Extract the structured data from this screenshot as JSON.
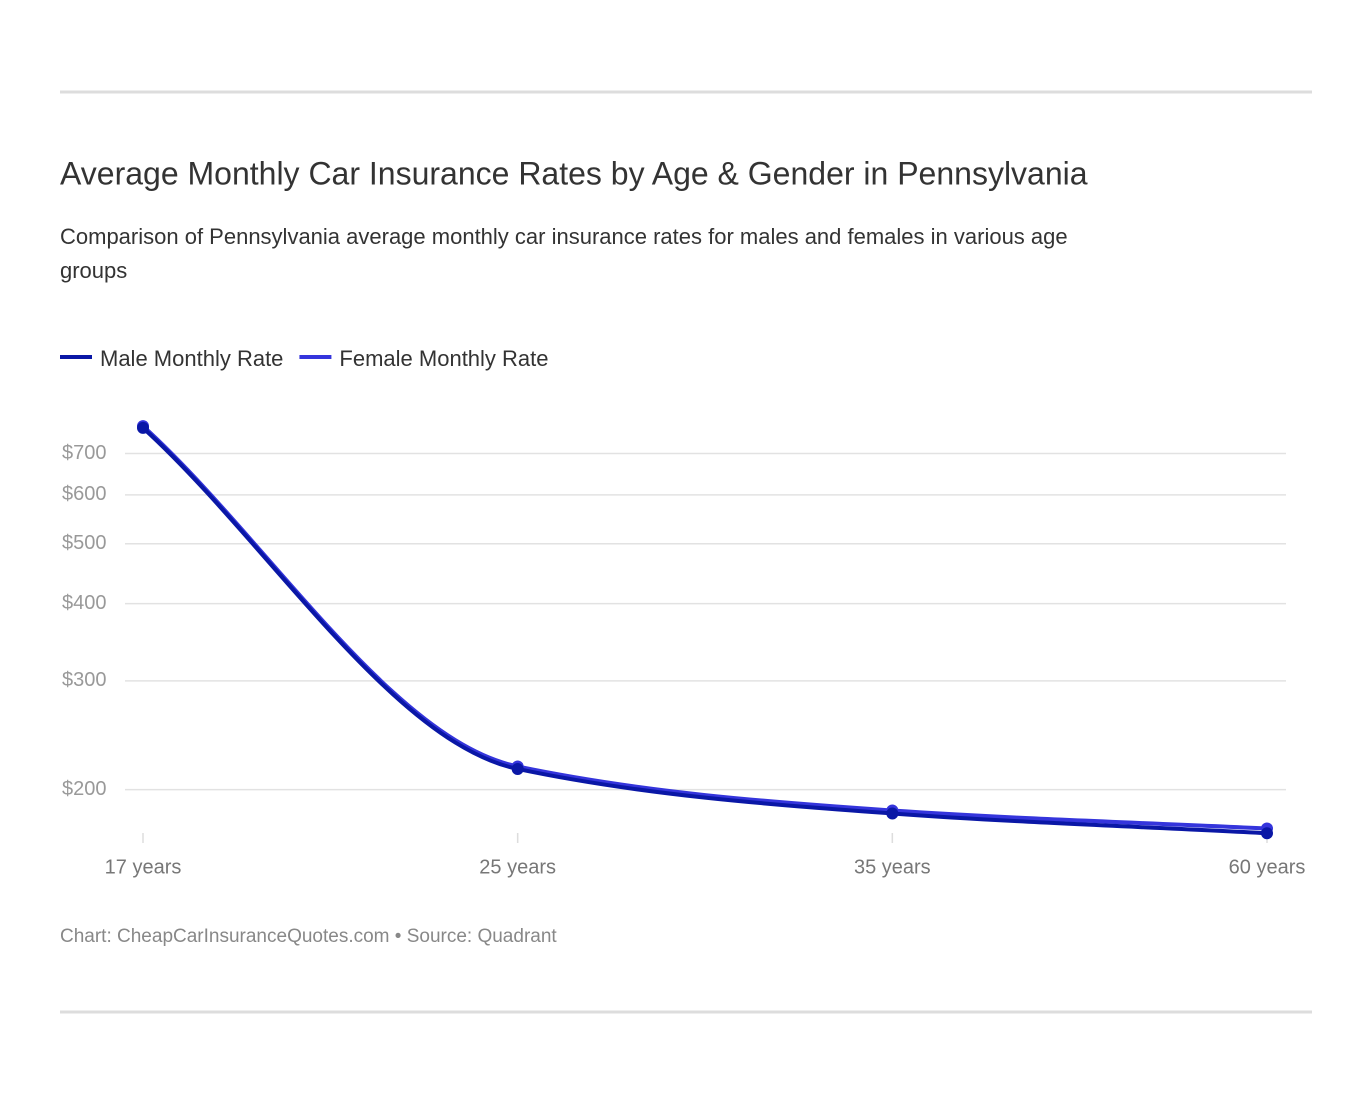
{
  "chart_data": {
    "type": "line",
    "title": "Average Monthly Car Insurance Rates by Age & Gender in Pennsylvania",
    "subtitle_lines": [
      "Comparison of Pennsylvania average monthly car insurance rates for males and females in various age",
      "groups"
    ],
    "categories": [
      "17 years",
      "25 years",
      "35 years",
      "60 years"
    ],
    "series": [
      {
        "name": "Male Monthly Rate",
        "color": "#0a17a6",
        "values": [
          770,
          216,
          183,
          170
        ]
      },
      {
        "name": "Female Monthly Rate",
        "color": "#3535dc",
        "values": [
          775,
          218,
          185,
          173
        ]
      }
    ],
    "ylim": [
      167,
      793
    ],
    "log_scale": true,
    "grid": true,
    "yticks": [
      {
        "value": 200,
        "label": "$200"
      },
      {
        "value": 300,
        "label": "$300"
      },
      {
        "value": 400,
        "label": "$400"
      },
      {
        "value": 500,
        "label": "$500"
      },
      {
        "value": 600,
        "label": "$600"
      },
      {
        "value": 700,
        "label": "$700"
      }
    ],
    "legend": "top-left",
    "footer": "Chart: CheapCarInsuranceQuotes.com • Source: Quadrant"
  }
}
